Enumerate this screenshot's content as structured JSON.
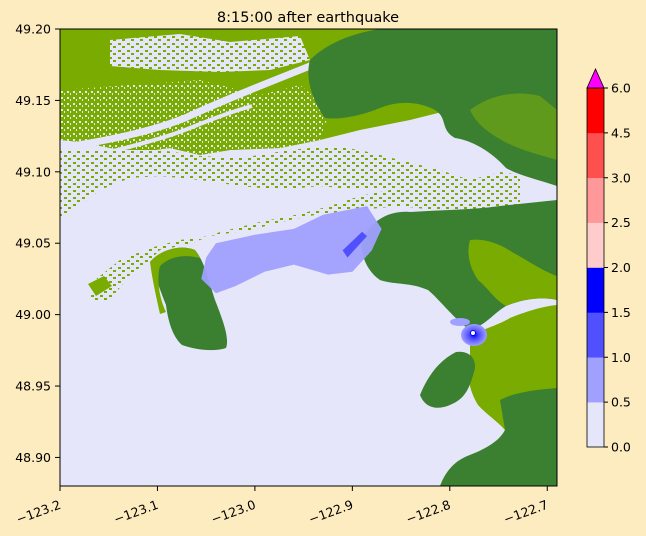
{
  "title": "8:15:00 after earthquake",
  "colors": {
    "figure_background": "#fdecc0",
    "water_background": "#e6e6fa",
    "land_lowland": "#7aab00",
    "land_upland": "#3a8030",
    "land_mid": "#5f9a1c"
  },
  "chart_data": {
    "type": "heatmap",
    "title": "8:15:00 after earthquake",
    "xlim": [
      -123.2,
      -122.69
    ],
    "ylim": [
      48.88,
      49.2
    ],
    "x_ticks": [
      -123.2,
      -123.1,
      -123.0,
      -122.9,
      -122.8,
      -122.7
    ],
    "x_tick_labels": [
      "−123.2",
      "−123.1",
      "−123.0",
      "−122.9",
      "−122.8",
      "−122.7"
    ],
    "y_ticks": [
      48.9,
      48.95,
      49.0,
      49.05,
      49.1,
      49.15,
      49.2
    ],
    "y_tick_labels": [
      "48.90",
      "48.95",
      "49.00",
      "49.05",
      "49.10",
      "49.15",
      "49.20"
    ],
    "colorbar": {
      "levels": [
        0.0,
        0.5,
        1.0,
        1.5,
        2.0,
        2.5,
        3.0,
        4.5,
        6.0
      ],
      "tick_labels": [
        "0.0",
        "0.5",
        "1.0",
        "1.5",
        "2.0",
        "2.5",
        "3.0",
        "4.5",
        "6.0"
      ],
      "colors": [
        "#e6e6fa",
        "#a0a0ff",
        "#5050ff",
        "#0000ff",
        "#ffcccc",
        "#ff9999",
        "#ff5050",
        "#ff0000"
      ],
      "extend_max_color": "#ff00ff",
      "extend": "max"
    },
    "features": [
      {
        "name": "inundation-patch-roberts-bank",
        "value_range": [
          0.5,
          1.0
        ],
        "color": "#a0a0ff",
        "polygon": [
          [
            -123.05,
            49.04
          ],
          [
            -123.04,
            49.05
          ],
          [
            -123.0,
            49.056
          ],
          [
            -122.96,
            49.06
          ],
          [
            -122.93,
            49.07
          ],
          [
            -122.885,
            49.076
          ],
          [
            -122.87,
            49.06
          ],
          [
            -122.88,
            49.045
          ],
          [
            -122.9,
            49.03
          ],
          [
            -122.925,
            49.028
          ],
          [
            -122.96,
            49.035
          ],
          [
            -122.99,
            49.03
          ],
          [
            -123.02,
            49.02
          ],
          [
            -123.04,
            49.015
          ],
          [
            -123.055,
            49.025
          ]
        ]
      },
      {
        "name": "inundation-streak-deeper",
        "value_range": [
          1.0,
          1.5
        ],
        "color": "#5050ff",
        "polygon": [
          [
            -122.91,
            49.045
          ],
          [
            -122.89,
            49.058
          ],
          [
            -122.885,
            49.055
          ],
          [
            -122.905,
            49.04
          ]
        ]
      },
      {
        "name": "inundation-spot-semiahmoo",
        "value_range": [
          0.5,
          2.0
        ],
        "color": "#a0a0ff",
        "center": [
          -122.77,
          48.99
        ]
      }
    ]
  }
}
